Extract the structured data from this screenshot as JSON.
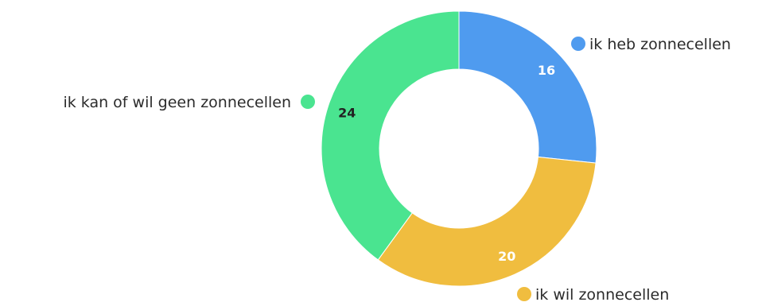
{
  "chart_data": {
    "type": "pie",
    "variant": "donut",
    "categories": [
      "ik heb zonnecellen",
      "ik wil zonnecellen",
      "ik kan of wil geen zonnecellen"
    ],
    "values": [
      16,
      20,
      24
    ],
    "colors": [
      "#4f9bef",
      "#f0bd3f",
      "#4ae490"
    ],
    "value_label_colors": [
      "#ffffff",
      "#ffffff",
      "#222222"
    ],
    "title": "",
    "legend": "labels beside slices"
  }
}
